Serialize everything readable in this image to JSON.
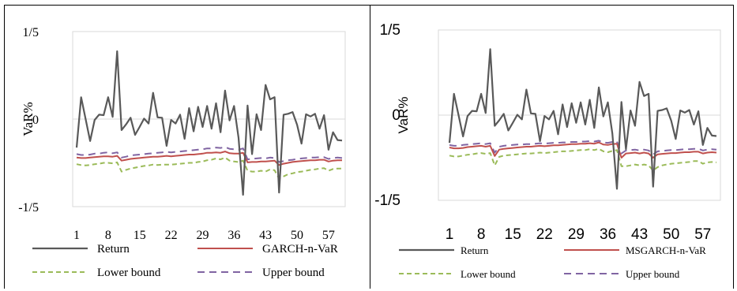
{
  "chart_data": [
    {
      "type": "line",
      "font": "serif",
      "ylabel": "VaR%",
      "xlabel": "",
      "yticks": [
        "1/5",
        "0",
        "-1/5"
      ],
      "ylim": [
        -0.2,
        0.2
      ],
      "xlim": [
        1,
        60
      ],
      "xticks": [
        1,
        8,
        15,
        22,
        29,
        36,
        43,
        50,
        57
      ],
      "x_start": 1,
      "grid": true,
      "legend_position": "bottom",
      "series": [
        {
          "name": "Return",
          "color": "#595959",
          "dash": "solid",
          "width": 2.2,
          "values": [
            -0.065,
            0.05,
            0.0,
            -0.05,
            -0.002,
            0.01,
            0.009,
            0.05,
            0.005,
            0.155,
            -0.025,
            -0.012,
            0.003,
            -0.036,
            -0.018,
            0.001,
            -0.01,
            0.06,
            0.004,
            0.003,
            -0.061,
            -0.002,
            -0.01,
            0.01,
            -0.045,
            0.025,
            -0.028,
            0.028,
            -0.018,
            0.03,
            -0.022,
            0.036,
            -0.03,
            0.065,
            -0.003,
            0.03,
            -0.043,
            -0.173,
            0.031,
            -0.08,
            0.011,
            -0.025,
            0.078,
            0.045,
            0.05,
            -0.168,
            0.01,
            0.012,
            0.016,
            -0.013,
            -0.056,
            0.011,
            0.006,
            0.012,
            -0.022,
            0.009,
            -0.07,
            -0.03,
            -0.048,
            -0.049
          ]
        },
        {
          "name": "GARCH-n-VaR",
          "color": "#c0504d",
          "dash": "solid",
          "width": 2,
          "values": [
            -0.088,
            -0.089,
            -0.089,
            -0.088,
            -0.087,
            -0.086,
            -0.085,
            -0.085,
            -0.086,
            -0.084,
            -0.095,
            -0.093,
            -0.091,
            -0.09,
            -0.089,
            -0.088,
            -0.087,
            -0.086,
            -0.086,
            -0.085,
            -0.084,
            -0.085,
            -0.084,
            -0.083,
            -0.082,
            -0.081,
            -0.081,
            -0.08,
            -0.079,
            -0.077,
            -0.077,
            -0.076,
            -0.077,
            -0.074,
            -0.078,
            -0.079,
            -0.079,
            -0.077,
            -0.099,
            -0.098,
            -0.098,
            -0.097,
            -0.097,
            -0.096,
            -0.095,
            -0.105,
            -0.102,
            -0.1,
            -0.098,
            -0.097,
            -0.096,
            -0.095,
            -0.094,
            -0.094,
            -0.093,
            -0.093,
            -0.097,
            -0.095,
            -0.094,
            -0.094
          ]
        },
        {
          "name": "Lower bound",
          "color": "#9bbb59",
          "dash": "6,4",
          "width": 2,
          "values": [
            -0.103,
            -0.105,
            -0.106,
            -0.105,
            -0.103,
            -0.102,
            -0.1,
            -0.1,
            -0.101,
            -0.099,
            -0.12,
            -0.116,
            -0.113,
            -0.111,
            -0.109,
            -0.107,
            -0.106,
            -0.104,
            -0.105,
            -0.104,
            -0.104,
            -0.104,
            -0.103,
            -0.102,
            -0.101,
            -0.1,
            -0.1,
            -0.098,
            -0.097,
            -0.094,
            -0.093,
            -0.09,
            -0.092,
            -0.088,
            -0.095,
            -0.097,
            -0.098,
            -0.095,
            -0.118,
            -0.12,
            -0.12,
            -0.118,
            -0.12,
            -0.115,
            -0.117,
            -0.136,
            -0.131,
            -0.126,
            -0.124,
            -0.121,
            -0.12,
            -0.118,
            -0.116,
            -0.115,
            -0.113,
            -0.112,
            -0.118,
            -0.114,
            -0.113,
            -0.113
          ]
        },
        {
          "name": "Upper bound",
          "color": "#8064a2",
          "dash": "9,6",
          "width": 2,
          "values": [
            -0.08,
            -0.082,
            -0.082,
            -0.081,
            -0.079,
            -0.079,
            -0.077,
            -0.076,
            -0.078,
            -0.076,
            -0.088,
            -0.086,
            -0.083,
            -0.082,
            -0.081,
            -0.08,
            -0.079,
            -0.078,
            -0.077,
            -0.076,
            -0.075,
            -0.076,
            -0.075,
            -0.074,
            -0.073,
            -0.072,
            -0.071,
            -0.07,
            -0.069,
            -0.067,
            -0.067,
            -0.065,
            -0.066,
            -0.064,
            -0.068,
            -0.069,
            -0.07,
            -0.067,
            -0.092,
            -0.091,
            -0.09,
            -0.089,
            -0.09,
            -0.088,
            -0.089,
            -0.098,
            -0.096,
            -0.094,
            -0.093,
            -0.091,
            -0.09,
            -0.089,
            -0.088,
            -0.088,
            -0.087,
            -0.087,
            -0.091,
            -0.089,
            -0.088,
            -0.089
          ]
        }
      ]
    },
    {
      "type": "line",
      "font": "sans",
      "ylabel": "VaR%",
      "xlabel": "",
      "yticks": [
        "1/5",
        "0",
        "-1/5"
      ],
      "ylim": [
        -0.2,
        0.2
      ],
      "xlim": [
        1,
        60
      ],
      "xticks": [
        1,
        8,
        15,
        22,
        29,
        36,
        43,
        50,
        57
      ],
      "x_start": 1,
      "grid": true,
      "legend_position": "bottom",
      "series": [
        {
          "name": "Return",
          "color": "#595959",
          "dash": "solid",
          "width": 2.2,
          "values": [
            -0.065,
            0.05,
            0.0,
            -0.05,
            -0.002,
            0.01,
            0.009,
            0.05,
            0.005,
            0.155,
            -0.025,
            -0.012,
            0.003,
            -0.036,
            -0.018,
            0.001,
            -0.01,
            0.06,
            0.004,
            0.003,
            -0.061,
            -0.002,
            -0.01,
            0.01,
            -0.045,
            0.025,
            -0.028,
            0.028,
            -0.018,
            0.03,
            -0.022,
            0.036,
            -0.03,
            0.065,
            -0.003,
            0.03,
            -0.043,
            -0.173,
            0.031,
            -0.08,
            0.011,
            -0.025,
            0.078,
            0.045,
            0.05,
            -0.168,
            0.01,
            0.012,
            0.016,
            -0.013,
            -0.056,
            0.011,
            0.006,
            0.012,
            -0.022,
            0.009,
            -0.07,
            -0.03,
            -0.048,
            -0.049
          ]
        },
        {
          "name": "MSGARCH-n-VaR",
          "color": "#c0504d",
          "dash": "solid",
          "width": 2,
          "values": [
            -0.076,
            -0.078,
            -0.078,
            -0.077,
            -0.075,
            -0.074,
            -0.073,
            -0.072,
            -0.074,
            -0.072,
            -0.096,
            -0.081,
            -0.079,
            -0.078,
            -0.077,
            -0.076,
            -0.075,
            -0.074,
            -0.074,
            -0.073,
            -0.072,
            -0.073,
            -0.072,
            -0.071,
            -0.071,
            -0.07,
            -0.069,
            -0.068,
            -0.068,
            -0.067,
            -0.067,
            -0.066,
            -0.067,
            -0.064,
            -0.069,
            -0.07,
            -0.068,
            -0.067,
            -0.1,
            -0.09,
            -0.089,
            -0.088,
            -0.09,
            -0.088,
            -0.09,
            -0.1,
            -0.092,
            -0.091,
            -0.09,
            -0.089,
            -0.089,
            -0.088,
            -0.087,
            -0.087,
            -0.086,
            -0.086,
            -0.09,
            -0.088,
            -0.087,
            -0.088
          ]
        },
        {
          "name": "Lower bound",
          "color": "#9bbb59",
          "dash": "6,4",
          "width": 2,
          "values": [
            -0.095,
            -0.097,
            -0.097,
            -0.095,
            -0.093,
            -0.092,
            -0.09,
            -0.089,
            -0.091,
            -0.089,
            -0.118,
            -0.098,
            -0.095,
            -0.094,
            -0.093,
            -0.092,
            -0.091,
            -0.09,
            -0.09,
            -0.089,
            -0.088,
            -0.089,
            -0.088,
            -0.087,
            -0.086,
            -0.085,
            -0.085,
            -0.084,
            -0.083,
            -0.082,
            -0.082,
            -0.08,
            -0.082,
            -0.079,
            -0.085,
            -0.087,
            -0.084,
            -0.082,
            -0.12,
            -0.12,
            -0.118,
            -0.116,
            -0.118,
            -0.116,
            -0.118,
            -0.13,
            -0.122,
            -0.118,
            -0.116,
            -0.114,
            -0.113,
            -0.112,
            -0.111,
            -0.11,
            -0.108,
            -0.108,
            -0.114,
            -0.111,
            -0.11,
            -0.111
          ]
        },
        {
          "name": "Upper bound",
          "color": "#8064a2",
          "dash": "9,6",
          "width": 2,
          "values": [
            -0.07,
            -0.072,
            -0.072,
            -0.07,
            -0.069,
            -0.068,
            -0.067,
            -0.066,
            -0.068,
            -0.066,
            -0.088,
            -0.074,
            -0.072,
            -0.071,
            -0.07,
            -0.069,
            -0.069,
            -0.068,
            -0.068,
            -0.067,
            -0.066,
            -0.067,
            -0.066,
            -0.065,
            -0.065,
            -0.064,
            -0.064,
            -0.063,
            -0.063,
            -0.062,
            -0.062,
            -0.061,
            -0.062,
            -0.06,
            -0.064,
            -0.065,
            -0.063,
            -0.062,
            -0.09,
            -0.083,
            -0.082,
            -0.081,
            -0.083,
            -0.081,
            -0.083,
            -0.092,
            -0.085,
            -0.084,
            -0.083,
            -0.082,
            -0.082,
            -0.081,
            -0.08,
            -0.08,
            -0.079,
            -0.079,
            -0.083,
            -0.081,
            -0.08,
            -0.081
          ]
        }
      ]
    }
  ]
}
